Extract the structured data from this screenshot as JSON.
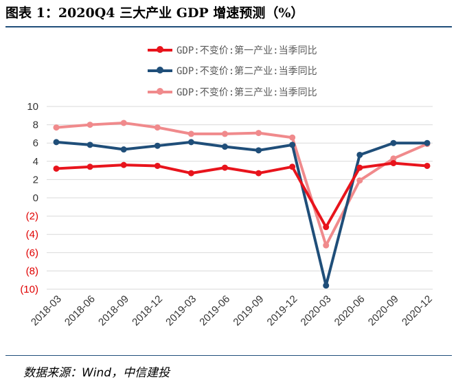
{
  "figure": {
    "title": "图表 1：2020Q4 三大产业 GDP 增速预测（%）",
    "source": "数据来源：Wind，中信建投"
  },
  "chart_data": {
    "type": "line",
    "categories": [
      "2018-03",
      "2018-06",
      "2018-09",
      "2018-12",
      "2019-03",
      "2019-06",
      "2019-09",
      "2019-12",
      "2020-03",
      "2020-06",
      "2020-09",
      "2020-12"
    ],
    "ylim": [
      -10,
      10
    ],
    "yticks": [
      10,
      8,
      6,
      4,
      2,
      0,
      -2,
      -4,
      -6,
      -8,
      -10
    ],
    "ytick_labels": [
      "10",
      "8",
      "6",
      "4",
      "2",
      "0",
      "(2)",
      "(4)",
      "(6)",
      "(8)",
      "(10)"
    ],
    "negative_tick_color": "#e00000",
    "grid": true,
    "legend_position": "top",
    "series": [
      {
        "name": "GDP:不变价:第一产业:当季同比",
        "color": "#e8141c",
        "values": [
          3.2,
          3.4,
          3.6,
          3.5,
          2.7,
          3.3,
          2.7,
          3.4,
          -3.2,
          3.3,
          3.8,
          3.5
        ]
      },
      {
        "name": "GDP:不变价:第二产业:当季同比",
        "color": "#1f4e79",
        "values": [
          6.1,
          5.8,
          5.3,
          5.7,
          6.1,
          5.6,
          5.2,
          5.8,
          -9.6,
          4.7,
          6.0,
          6.0
        ]
      },
      {
        "name": "GDP:不变价:第三产业:当季同比",
        "color": "#f08a8c",
        "values": [
          7.7,
          8.0,
          8.2,
          7.7,
          7.0,
          7.0,
          7.1,
          6.6,
          -5.2,
          1.9,
          4.3,
          5.9
        ]
      }
    ]
  }
}
